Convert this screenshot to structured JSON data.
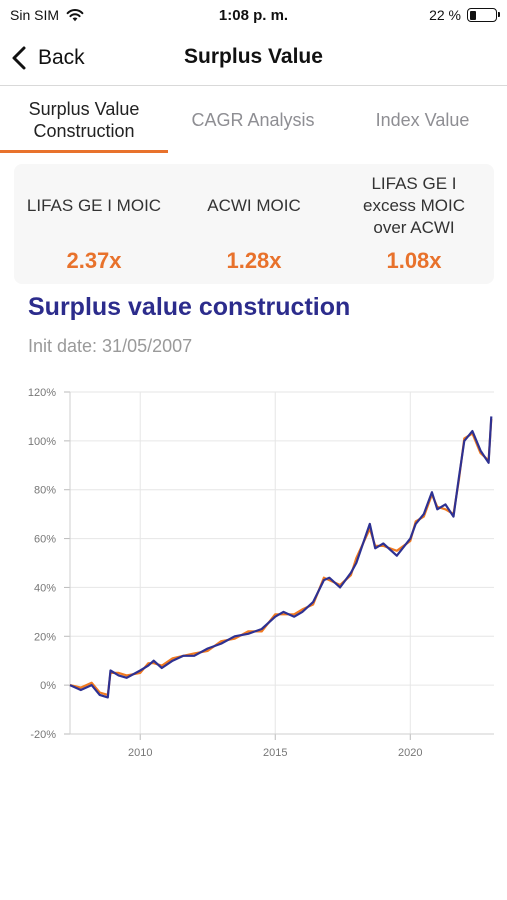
{
  "status_bar": {
    "carrier": "Sin SIM",
    "time": "1:08 p. m.",
    "battery": "22 %",
    "battery_level": 0.22
  },
  "nav": {
    "back_label": "Back",
    "title": "Surplus Value"
  },
  "tabs": [
    {
      "label": "Surplus Value\nConstruction",
      "active": true
    },
    {
      "label": "CAGR Analysis",
      "active": false
    },
    {
      "label": "Index Value",
      "active": false
    }
  ],
  "metrics": [
    {
      "label": "LIFAS GE I MOIC",
      "value": "2.37x"
    },
    {
      "label": "ACWI MOIC",
      "value": "1.28x"
    },
    {
      "label": "LIFAS GE I\nexcess MOIC\nover ACWI",
      "value": "1.08x"
    }
  ],
  "section": {
    "title": "Surplus value construction",
    "init_date": "Init date: 31/05/2007"
  },
  "colors": {
    "accent": "#e8722c",
    "title": "#2c2c8c",
    "series_a": "#2e3192",
    "series_b": "#f07a20"
  },
  "chart_data": {
    "type": "line",
    "title": "",
    "xlabel": "",
    "ylabel": "",
    "xlim": [
      2007.4,
      2023.1
    ],
    "ylim": [
      -20,
      120
    ],
    "y_ticks": [
      -20,
      0,
      20,
      40,
      60,
      80,
      100,
      120
    ],
    "y_tick_labels": [
      "-20%",
      "0%",
      "20%",
      "40%",
      "60%",
      "80%",
      "100%",
      "120%"
    ],
    "x_ticks": [
      2010,
      2015,
      2020
    ],
    "x_tick_labels": [
      "2010",
      "2015",
      "2020"
    ],
    "grid": true,
    "series": [
      {
        "color": "#2e3192",
        "x": [
          2007.4,
          2007.8,
          2008.2,
          2008.5,
          2008.8,
          2008.9,
          2009.2,
          2009.5,
          2010.0,
          2010.3,
          2010.5,
          2010.8,
          2011.2,
          2011.6,
          2012.0,
          2012.5,
          2013.0,
          2013.5,
          2014.0,
          2014.5,
          2015.0,
          2015.3,
          2015.7,
          2016.0,
          2016.4,
          2016.8,
          2017.0,
          2017.4,
          2017.8,
          2018.0,
          2018.5,
          2018.7,
          2019.0,
          2019.5,
          2020.0,
          2020.2,
          2020.5,
          2020.8,
          2021.0,
          2021.3,
          2021.6,
          2021.8,
          2022.0,
          2022.3,
          2022.6,
          2022.9,
          2023.0
        ],
        "y": [
          0,
          -2,
          0,
          -4,
          -5,
          6,
          4,
          3,
          6,
          8,
          10,
          7,
          10,
          12,
          12,
          15,
          17,
          20,
          21,
          23,
          28,
          30,
          28,
          30,
          34,
          43,
          44,
          40,
          46,
          50,
          66,
          56,
          58,
          53,
          60,
          66,
          70,
          79,
          72,
          74,
          69,
          85,
          100,
          104,
          96,
          91,
          110
        ]
      },
      {
        "color": "#f07a20",
        "x": [
          2007.4,
          2007.8,
          2008.2,
          2008.5,
          2008.8,
          2008.9,
          2009.2,
          2009.5,
          2010.0,
          2010.3,
          2010.5,
          2010.8,
          2011.2,
          2011.6,
          2012.0,
          2012.5,
          2013.0,
          2013.5,
          2014.0,
          2014.5,
          2015.0,
          2015.3,
          2015.7,
          2016.0,
          2016.4,
          2016.8,
          2017.0,
          2017.4,
          2017.8,
          2018.0,
          2018.5,
          2018.7,
          2019.0,
          2019.5,
          2020.0,
          2020.2,
          2020.5,
          2020.8,
          2021.0,
          2021.3,
          2021.6,
          2021.8,
          2022.0,
          2022.3,
          2022.6,
          2022.9,
          2023.0
        ],
        "y": [
          0,
          -1,
          1,
          -3,
          -4,
          5,
          5,
          4,
          5,
          9,
          9,
          8,
          11,
          12,
          13,
          14,
          18,
          19,
          22,
          22,
          29,
          29,
          29,
          31,
          33,
          44,
          43,
          41,
          45,
          52,
          64,
          57,
          57,
          55,
          59,
          67,
          69,
          78,
          73,
          72,
          70,
          84,
          101,
          103,
          95,
          92,
          109
        ]
      }
    ]
  }
}
